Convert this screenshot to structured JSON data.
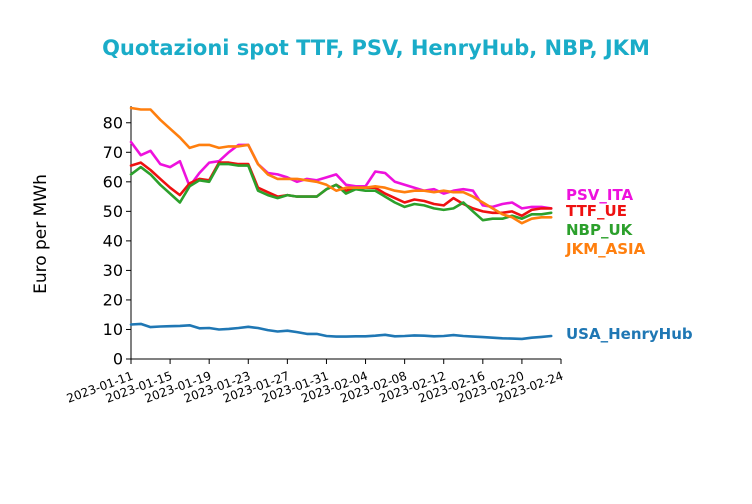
{
  "chart_data": {
    "type": "line",
    "title": "Quotazioni spot TTF, PSV, HenryHub, NBP, JKM",
    "title_color": "#1AACC8",
    "ylabel": "Euro per MWh",
    "xlabel": "",
    "ylim": [
      0,
      85
    ],
    "yticks": [
      0,
      10,
      20,
      30,
      40,
      50,
      60,
      70,
      80
    ],
    "xlim": [
      "2023-01-11",
      "2023-02-24"
    ],
    "xticks": [
      "2023-01-11",
      "2023-01-15",
      "2023-01-19",
      "2023-01-23",
      "2023-01-27",
      "2023-01-31",
      "2023-02-04",
      "2023-02-08",
      "2023-02-12",
      "2023-02-16",
      "2023-02-20",
      "2023-02-24"
    ],
    "grid": false,
    "legend": "right, labels at line ends",
    "x": [
      "2023-01-11",
      "2023-01-12",
      "2023-01-13",
      "2023-01-14",
      "2023-01-15",
      "2023-01-16",
      "2023-01-17",
      "2023-01-18",
      "2023-01-19",
      "2023-01-20",
      "2023-01-21",
      "2023-01-22",
      "2023-01-23",
      "2023-01-24",
      "2023-01-25",
      "2023-01-26",
      "2023-01-27",
      "2023-01-28",
      "2023-01-29",
      "2023-01-30",
      "2023-01-31",
      "2023-02-01",
      "2023-02-02",
      "2023-02-03",
      "2023-02-04",
      "2023-02-05",
      "2023-02-06",
      "2023-02-07",
      "2023-02-08",
      "2023-02-09",
      "2023-02-10",
      "2023-02-11",
      "2023-02-12",
      "2023-02-13",
      "2023-02-14",
      "2023-02-15",
      "2023-02-16",
      "2023-02-17",
      "2023-02-18",
      "2023-02-19",
      "2023-02-20",
      "2023-02-21",
      "2023-02-22",
      "2023-02-23"
    ],
    "series": [
      {
        "name": "PSV_ITA",
        "color": "#EE11DD",
        "values": [
          73.5,
          69,
          70.5,
          66,
          65,
          67,
          58.5,
          63,
          66.5,
          67,
          70,
          72.5,
          72.5,
          66,
          63,
          62.5,
          61.5,
          60,
          61,
          60.5,
          61.5,
          62.5,
          59,
          58.5,
          58.5,
          63.5,
          63,
          60,
          59,
          58,
          57,
          57.5,
          56,
          57,
          57.5,
          57,
          52,
          51.5,
          52.5,
          53,
          51,
          51.5,
          51.5,
          51
        ]
      },
      {
        "name": "TTF_UE",
        "color": "#EE1111",
        "values": [
          65.5,
          66.5,
          64,
          61,
          58,
          55.5,
          59.5,
          61,
          60.5,
          66.5,
          66.5,
          66,
          66,
          58,
          56.5,
          55,
          55.5,
          55,
          55,
          55,
          57.5,
          59,
          57,
          58,
          58,
          58,
          56,
          54.5,
          53,
          54,
          53.5,
          52.5,
          52,
          54.5,
          52.5,
          51,
          50,
          49.5,
          49.5,
          50,
          48.5,
          50.5,
          51,
          51
        ]
      },
      {
        "name": "NBP_UK",
        "color": "#2CA02C",
        "values": [
          62.5,
          65,
          62.5,
          59,
          56,
          53,
          58.5,
          60.5,
          60,
          66,
          66,
          65.5,
          65.5,
          57,
          55.5,
          54.5,
          55.5,
          55,
          55,
          55,
          57.5,
          59,
          56,
          57.5,
          57,
          57,
          55,
          53,
          51.5,
          52.5,
          52,
          51,
          50.5,
          51,
          53,
          50,
          47,
          47.5,
          47.5,
          48.5,
          47.5,
          49,
          49,
          49.5
        ]
      },
      {
        "name": "JKM_ASIA",
        "color": "#FF7F0E",
        "values": [
          85,
          84.5,
          84.5,
          81,
          78,
          75,
          71.5,
          72.5,
          72.5,
          71.5,
          72,
          72,
          72.5,
          66,
          62.5,
          61,
          61,
          61,
          60.5,
          60,
          59,
          57,
          58,
          58,
          58,
          58.5,
          58,
          57,
          56.5,
          57,
          57,
          56.5,
          57,
          56.5,
          56.5,
          55,
          53,
          51,
          49,
          48,
          46,
          47.5,
          48,
          48
        ]
      },
      {
        "name": "USA_HenryHub",
        "color": "#1F77B4",
        "values": [
          11.7,
          11.9,
          10.8,
          11,
          11.1,
          11.2,
          11.4,
          10.4,
          10.5,
          10,
          10.2,
          10.5,
          10.9,
          10.5,
          9.8,
          9.3,
          9.6,
          9.1,
          8.5,
          8.5,
          7.8,
          7.6,
          7.6,
          7.7,
          7.7,
          7.9,
          8.2,
          7.7,
          7.8,
          8,
          7.9,
          7.7,
          7.8,
          8.1,
          7.8,
          7.6,
          7.4,
          7.2,
          7,
          6.9,
          6.8,
          7.2,
          7.5,
          7.8
        ]
      }
    ]
  }
}
